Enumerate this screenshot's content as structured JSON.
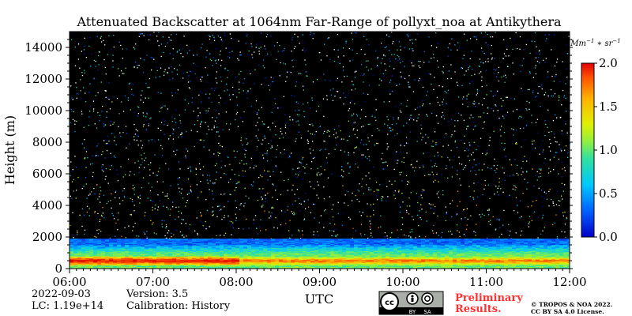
{
  "chart_data": {
    "type": "heatmap",
    "title": "Attenuated Backscatter at 1064nm Far-Range of pollyxt_noa at Antikythera",
    "xlabel": "UTC",
    "ylabel": "Height (m)",
    "x_ticks": [
      "06:00",
      "07:00",
      "08:00",
      "09:00",
      "10:00",
      "11:00",
      "12:00"
    ],
    "x_range": [
      "06:00",
      "12:00"
    ],
    "y_ticks": [
      0,
      2000,
      4000,
      6000,
      8000,
      10000,
      12000,
      14000
    ],
    "y_range": [
      0,
      15000
    ],
    "colorbar": {
      "unit": "Mm^-1*sr^-1",
      "ticks": [
        "0.0",
        "0.5",
        "1.0",
        "1.5",
        "2.0"
      ],
      "range": [
        0,
        2.0
      ],
      "colormap": [
        "#0000b0",
        "#0060ff",
        "#00c8ff",
        "#30e0a0",
        "#90f040",
        "#e0f000",
        "#ffb000",
        "#ff5000",
        "#e00000"
      ]
    },
    "features": [
      {
        "name": "boundary_layer",
        "time_range": [
          "06:00",
          "12:00"
        ],
        "height_range": [
          0,
          1500
        ],
        "max_value": 2.0
      },
      {
        "name": "enhanced_layer",
        "time_range": [
          "06:00",
          "08:00"
        ],
        "height_range": [
          200,
          800
        ],
        "max_value": 2.0
      }
    ]
  },
  "info": {
    "date": "2022-09-03",
    "lc": "LC: 1.19e+14",
    "version": "Version: 3.5",
    "calibration": "Calibration: History"
  },
  "license": {
    "cc": "cc",
    "by": "BY",
    "sa": "SA",
    "preliminary_1": "Preliminary",
    "preliminary_2": "Results.",
    "copyright_1": "© TROPOS & NOA 2022.",
    "copyright_2": "CC BY SA 4.0 License."
  },
  "colors": {
    "background": "#000000",
    "preliminary": "#ff3030"
  }
}
